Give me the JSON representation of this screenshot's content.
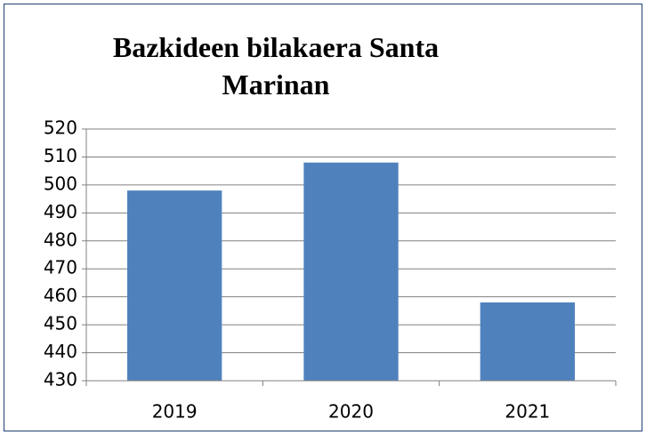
{
  "chart_data": {
    "type": "bar",
    "title": "Bazkideen bilakaera Santa Marinan",
    "categories": [
      "2019",
      "2020",
      "2021"
    ],
    "values": [
      498,
      508,
      458
    ],
    "color": "#4f81bd",
    "ylim": [
      430,
      520
    ],
    "yticks": [
      430,
      440,
      450,
      460,
      470,
      480,
      490,
      500,
      510,
      520
    ],
    "grid": true
  }
}
